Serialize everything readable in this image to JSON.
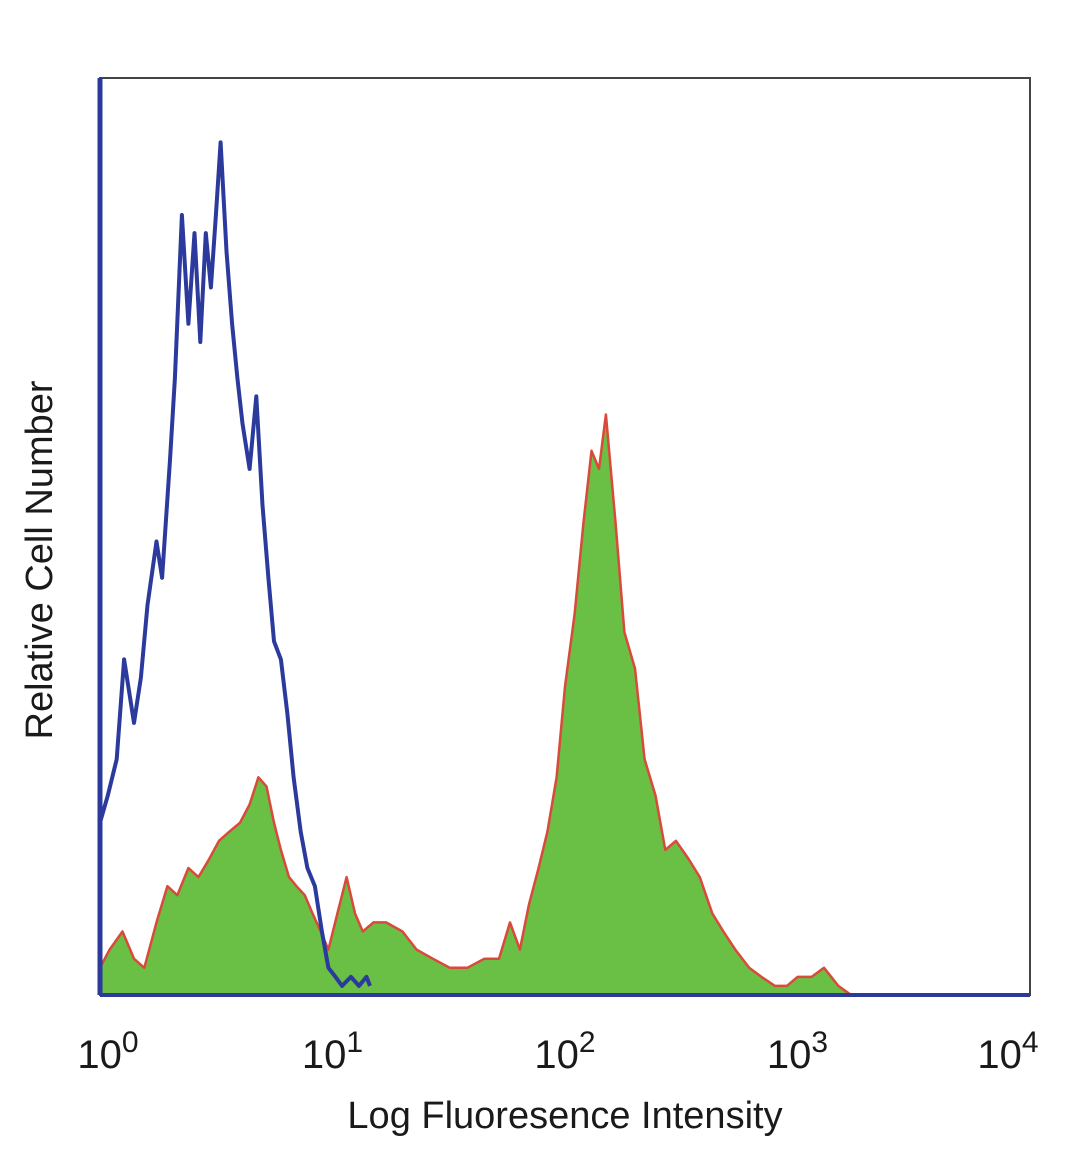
{
  "chart_data": {
    "type": "area",
    "title": "",
    "xlabel": "Log Fluoresence Intensity",
    "ylabel": "Relative Cell Number",
    "x_scale": "log",
    "xlim": [
      1,
      10000
    ],
    "ylim": [
      0,
      100
    ],
    "grid": false,
    "legend": "none",
    "x_ticks": [
      {
        "base": "10",
        "exp": "0",
        "value": 1
      },
      {
        "base": "10",
        "exp": "1",
        "value": 10
      },
      {
        "base": "10",
        "exp": "2",
        "value": 100
      },
      {
        "base": "10",
        "exp": "3",
        "value": 1000
      },
      {
        "base": "10",
        "exp": "4",
        "value": 10000
      }
    ],
    "series": [
      {
        "style": "outline",
        "color": "#2b3a9c",
        "x": [
          1.0,
          1.08,
          1.18,
          1.27,
          1.4,
          1.5,
          1.6,
          1.75,
          1.85,
          2.0,
          2.1,
          2.25,
          2.4,
          2.55,
          2.7,
          2.85,
          3.0,
          3.15,
          3.3,
          3.5,
          3.7,
          3.9,
          4.1,
          4.4,
          4.7,
          5.0,
          5.3,
          5.6,
          6.0,
          6.4,
          6.8,
          7.3,
          7.8,
          8.4,
          9.0,
          9.6,
          10.3,
          11.0,
          12.0,
          13.0,
          14.0,
          14.5
        ],
        "y": [
          19,
          22,
          26,
          37,
          30,
          35,
          43,
          50,
          46,
          59,
          68,
          86,
          74,
          84,
          72,
          84,
          78,
          86,
          94,
          82,
          74,
          68,
          63,
          58,
          66,
          54,
          46,
          39,
          37,
          31,
          24,
          18,
          14,
          12,
          7,
          3,
          2,
          1,
          2,
          1,
          2,
          1
        ]
      },
      {
        "style": "filled",
        "color": "#6abf45",
        "edge_color": "#d94a3a",
        "x": [
          1.0,
          1.1,
          1.25,
          1.4,
          1.55,
          1.75,
          1.95,
          2.15,
          2.4,
          2.65,
          2.95,
          3.25,
          3.6,
          4.0,
          4.4,
          4.8,
          5.2,
          5.6,
          6.0,
          6.5,
          7.0,
          7.6,
          8.2,
          8.9,
          9.6,
          10.5,
          11.5,
          12.5,
          13.5,
          15.0,
          17.0,
          20.0,
          23.0,
          27.0,
          32.0,
          38.0,
          45.0,
          52.0,
          58.0,
          64.0,
          70.0,
          77.0,
          84.0,
          92.0,
          100.0,
          110.0,
          120.0,
          130.0,
          140.0,
          150.0,
          165.0,
          180.0,
          200.0,
          220.0,
          245.0,
          270.0,
          300.0,
          340.0,
          380.0,
          430.0,
          480.0,
          540.0,
          620.0,
          700.0,
          800.0,
          900.0,
          1000.0,
          1150.0,
          1300.0,
          1500.0,
          1700.0
        ],
        "y": [
          3,
          5,
          7,
          4,
          3,
          8,
          12,
          11,
          14,
          13,
          15,
          17,
          18,
          19,
          21,
          24,
          23,
          19,
          16,
          13,
          12,
          11,
          9,
          7,
          5,
          9,
          13,
          9,
          7,
          8,
          8,
          7,
          5,
          4,
          3,
          3,
          4,
          4,
          8,
          5,
          10,
          14,
          18,
          24,
          34,
          42,
          52,
          60,
          58,
          64,
          52,
          40,
          36,
          26,
          22,
          16,
          17,
          15,
          13,
          9,
          7,
          5,
          3,
          2,
          1,
          1,
          2,
          2,
          3,
          1,
          0
        ]
      }
    ]
  }
}
